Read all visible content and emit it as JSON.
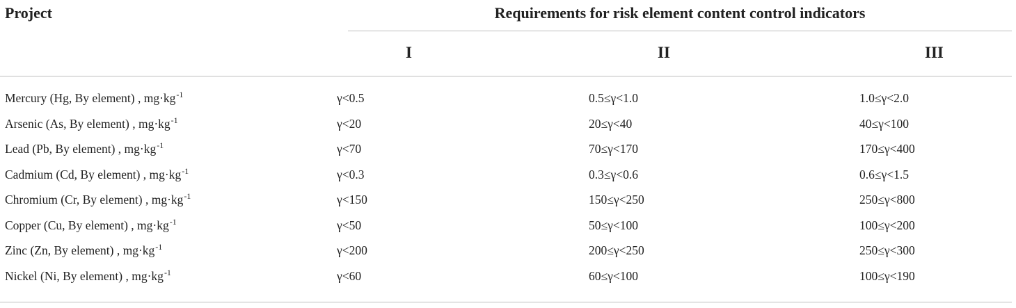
{
  "table": {
    "header": {
      "project": "Project",
      "group": "Requirements for risk element content control indicators",
      "columns": [
        "I",
        "II",
        "III"
      ]
    },
    "unit_superscript": "-1",
    "rows": [
      {
        "project": "Mercury (Hg, By element) , mg·kg",
        "i": "γ<0.5",
        "ii": "0.5≤γ<1.0",
        "iii": "1.0≤γ<2.0"
      },
      {
        "project": "Arsenic (As, By element) , mg·kg",
        "i": "γ<20",
        "ii": "20≤γ<40",
        "iii": "40≤γ<100"
      },
      {
        "project": "Lead (Pb, By element) , mg·kg",
        "i": "γ<70",
        "ii": "70≤γ<170",
        "iii": "170≤γ<400"
      },
      {
        "project": "Cadmium (Cd, By element) , mg·kg",
        "i": "γ<0.3",
        "ii": "0.3≤γ<0.6",
        "iii": "0.6≤γ<1.5"
      },
      {
        "project": "Chromium (Cr, By element) , mg·kg",
        "i": "γ<150",
        "ii": "150≤γ<250",
        "iii": "250≤γ<800"
      },
      {
        "project": "Copper (Cu, By element) , mg·kg",
        "i": "γ<50",
        "ii": "50≤γ<100",
        "iii": "100≤γ<200"
      },
      {
        "project": "Zinc (Zn, By element) , mg·kg",
        "i": "γ<200",
        "ii": "200≤γ<250",
        "iii": "250≤γ<300"
      },
      {
        "project": "Nickel (Ni, By element) , mg·kg",
        "i": "γ<60",
        "ii": "60≤γ<100",
        "iii": "100≤γ<190"
      }
    ]
  }
}
